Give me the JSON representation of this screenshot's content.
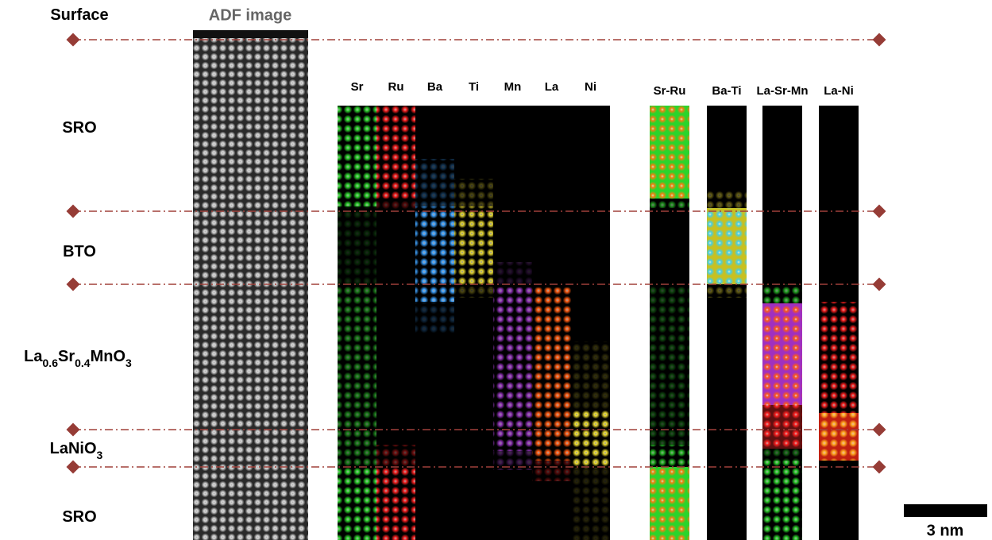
{
  "layers": [
    {
      "label": [
        {
          "text": "Surface"
        }
      ]
    },
    {
      "label": [
        {
          "text": "SRO"
        }
      ]
    },
    {
      "label": [
        {
          "text": "BTO"
        }
      ]
    },
    {
      "label": [
        {
          "text": "La"
        },
        {
          "text": "0.6",
          "sub": true
        },
        {
          "text": "Sr"
        },
        {
          "text": "0.4",
          "sub": true
        },
        {
          "text": "MnO"
        },
        {
          "text": "3",
          "sub": true
        }
      ]
    },
    {
      "label": [
        {
          "text": "LaNiO"
        },
        {
          "text": "3",
          "sub": true
        }
      ]
    },
    {
      "label": [
        {
          "text": "SRO"
        }
      ]
    }
  ],
  "adf_title": "ADF image",
  "element_maps": [
    "Sr",
    "Ru",
    "Ba",
    "Ti",
    "Mn",
    "La",
    "Ni"
  ],
  "composite_maps": [
    "Sr-Ru",
    "Ba-Ti",
    "La-Sr-Mn",
    "La-Ni"
  ],
  "scale_bar": "3 nm"
}
